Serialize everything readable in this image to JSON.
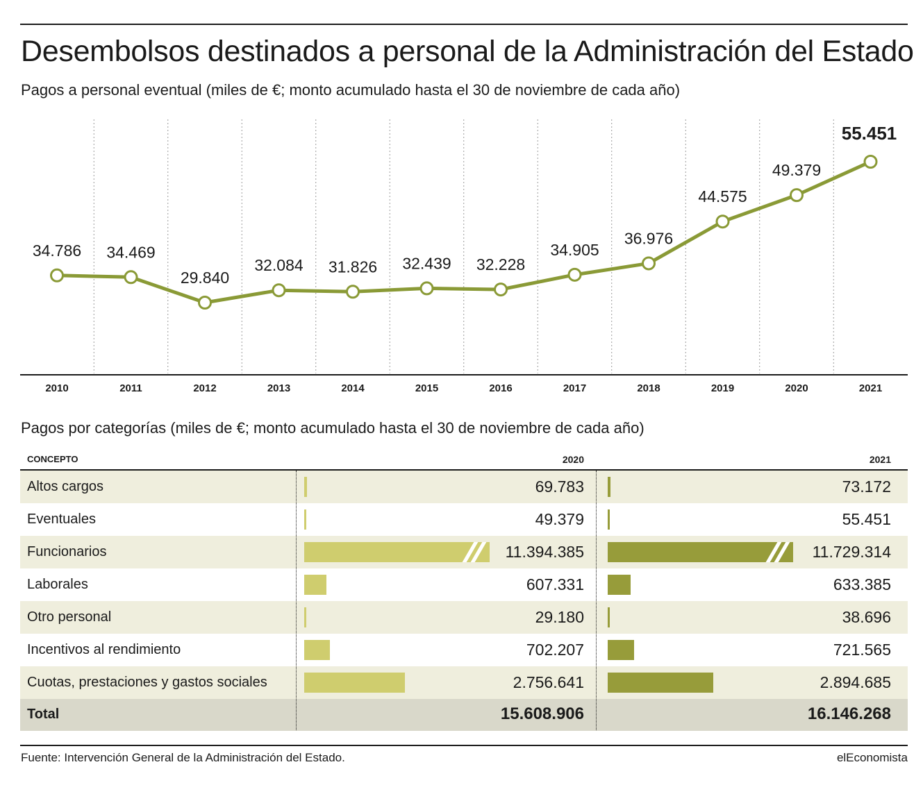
{
  "header": {
    "title": "Desembolsos destinados a personal de la Administración del Estado",
    "subtitle": "Pagos a personal eventual (miles de €; monto acumulado hasta el 30 de noviembre de cada año)"
  },
  "colors": {
    "line": "#8a9a36",
    "bar_2020": "#cfcd6e",
    "bar_2021": "#979c3a",
    "row_shade": "#efeedd",
    "total_shade": "#d9d8ca"
  },
  "chart_data": [
    {
      "type": "line",
      "x": [
        "2010",
        "2011",
        "2012",
        "2013",
        "2014",
        "2015",
        "2016",
        "2017",
        "2018",
        "2019",
        "2020",
        "2021"
      ],
      "values": [
        34786,
        34469,
        29840,
        32084,
        31826,
        32439,
        32228,
        34905,
        36976,
        44575,
        49379,
        55451
      ],
      "labels": [
        "34.786",
        "34.469",
        "29.840",
        "32.084",
        "31.826",
        "32.439",
        "32.228",
        "34.905",
        "36.976",
        "44.575",
        "49.379",
        "55.451"
      ],
      "highlight_last": true,
      "grid": "vertical dotted",
      "title": "Pagos a personal eventual (miles de €; monto acumulado hasta el 30 de noviembre de cada año)"
    },
    {
      "type": "table",
      "title": "Pagos por categorías (miles de €; monto acumulado hasta el 30 de noviembre de cada año)",
      "columns": [
        "CONCEPTO",
        "2020",
        "2021"
      ],
      "rows": [
        {
          "label": "Altos cargos",
          "v2020": 69783,
          "v2021": 73172,
          "t2020": "69.783",
          "t2021": "73.172"
        },
        {
          "label": "Eventuales",
          "v2020": 49379,
          "v2021": 55451,
          "t2020": "49.379",
          "t2021": "55.451"
        },
        {
          "label": "Funcionarios",
          "v2020": 11394385,
          "v2021": 11729314,
          "t2020": "11.394.385",
          "t2021": "11.729.314",
          "bar_truncated": true
        },
        {
          "label": "Laborales",
          "v2020": 607331,
          "v2021": 633385,
          "t2020": "607.331",
          "t2021": "633.385"
        },
        {
          "label": "Otro personal",
          "v2020": 29180,
          "v2021": 38696,
          "t2020": "29.180",
          "t2021": "38.696"
        },
        {
          "label": "Incentivos al rendimiento",
          "v2020": 702207,
          "v2021": 721565,
          "t2020": "702.207",
          "t2021": "721.565"
        },
        {
          "label": "Cuotas, prestaciones y gastos sociales",
          "v2020": 2756641,
          "v2021": 2894685,
          "t2020": "2.756.641",
          "t2021": "2.894.685"
        }
      ],
      "total": {
        "label": "Total",
        "t2020": "15.608.906",
        "t2021": "16.146.268"
      }
    }
  ],
  "footer": {
    "source": "Fuente: Intervención General de la Administración del Estado.",
    "brand": "elEconomista"
  }
}
